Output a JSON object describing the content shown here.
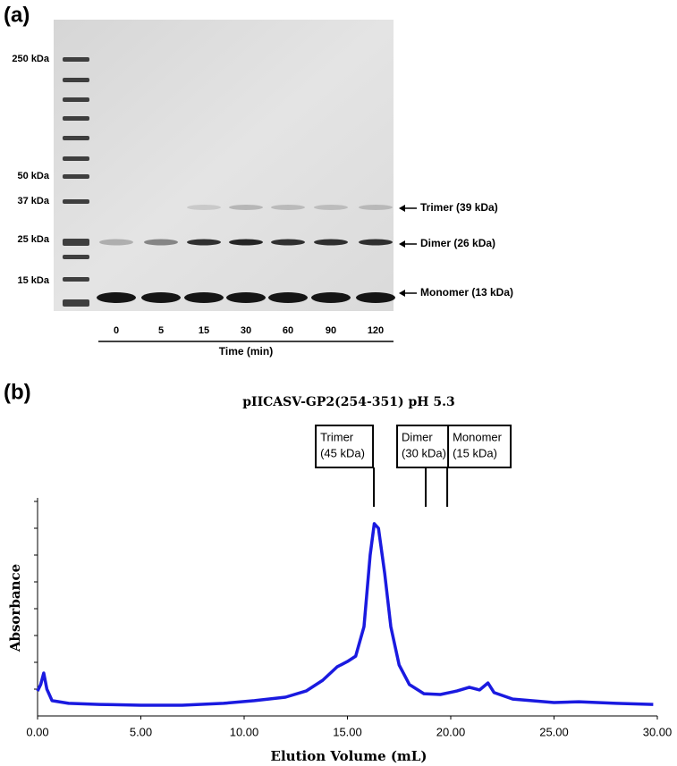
{
  "panel_a": {
    "label": "(a)",
    "ladder_labels": [
      "250 kDa",
      "50 kDa",
      "37 kDa",
      "25 kDa",
      "15 kDa"
    ],
    "lanes": [
      "0",
      "5",
      "15",
      "30",
      "60",
      "90",
      "120"
    ],
    "lane_axis_label": "Time (min)",
    "band_labels": [
      "Trimer (39 kDa)",
      "Dimer (26 kDa)",
      "Monomer (13 kDa)"
    ]
  },
  "panel_b_label": "(b)",
  "chart_data": {
    "type": "line",
    "title": "pIICASV-GP2(254-351) pH 5.3",
    "x_label": "Elution Volume (mL)",
    "y_label": "Absorbance",
    "xlim": [
      0,
      30
    ],
    "xticks": [
      {
        "value": 0,
        "label": "0.00"
      },
      {
        "value": 5,
        "label": "5.00"
      },
      {
        "value": 10,
        "label": "10.00"
      },
      {
        "value": 15,
        "label": "15.00"
      },
      {
        "value": 20,
        "label": "20.00"
      },
      {
        "value": 25,
        "label": "25.00"
      },
      {
        "value": 30,
        "label": "30.00"
      }
    ],
    "ylim": [
      0,
      8
    ],
    "yticks": [
      1,
      2,
      3,
      4,
      5,
      6,
      7,
      8
    ],
    "color": "#1a1ae0",
    "x": [
      0,
      0.15,
      0.3,
      0.45,
      0.7,
      1.5,
      3,
      5,
      7,
      9,
      10.5,
      12,
      13,
      13.8,
      14.5,
      15,
      15.4,
      15.8,
      16.1,
      16.3,
      16.5,
      16.8,
      17.1,
      17.5,
      18,
      18.7,
      19.5,
      20.3,
      20.9,
      21.4,
      21.8,
      22.1,
      23,
      25,
      26.2,
      28,
      29.8
    ],
    "values": [
      0.93,
      1.17,
      1.6,
      1.0,
      0.57,
      0.47,
      0.43,
      0.4,
      0.4,
      0.47,
      0.57,
      0.7,
      0.93,
      1.33,
      1.83,
      2.03,
      2.23,
      3.33,
      6.0,
      7.17,
      7.0,
      5.33,
      3.33,
      1.9,
      1.17,
      0.83,
      0.8,
      0.93,
      1.07,
      0.97,
      1.23,
      0.87,
      0.63,
      0.5,
      0.53,
      0.47,
      0.43
    ],
    "annotations": [
      {
        "lines": [
          "Trimer",
          "(45 kDa)"
        ],
        "x": 16.28
      },
      {
        "lines": [
          "Dimer",
          "(30 kDa)"
        ],
        "x": 18.79
      },
      {
        "lines": [
          "Monomer",
          "(15 kDa)"
        ],
        "x": 19.83
      }
    ]
  }
}
